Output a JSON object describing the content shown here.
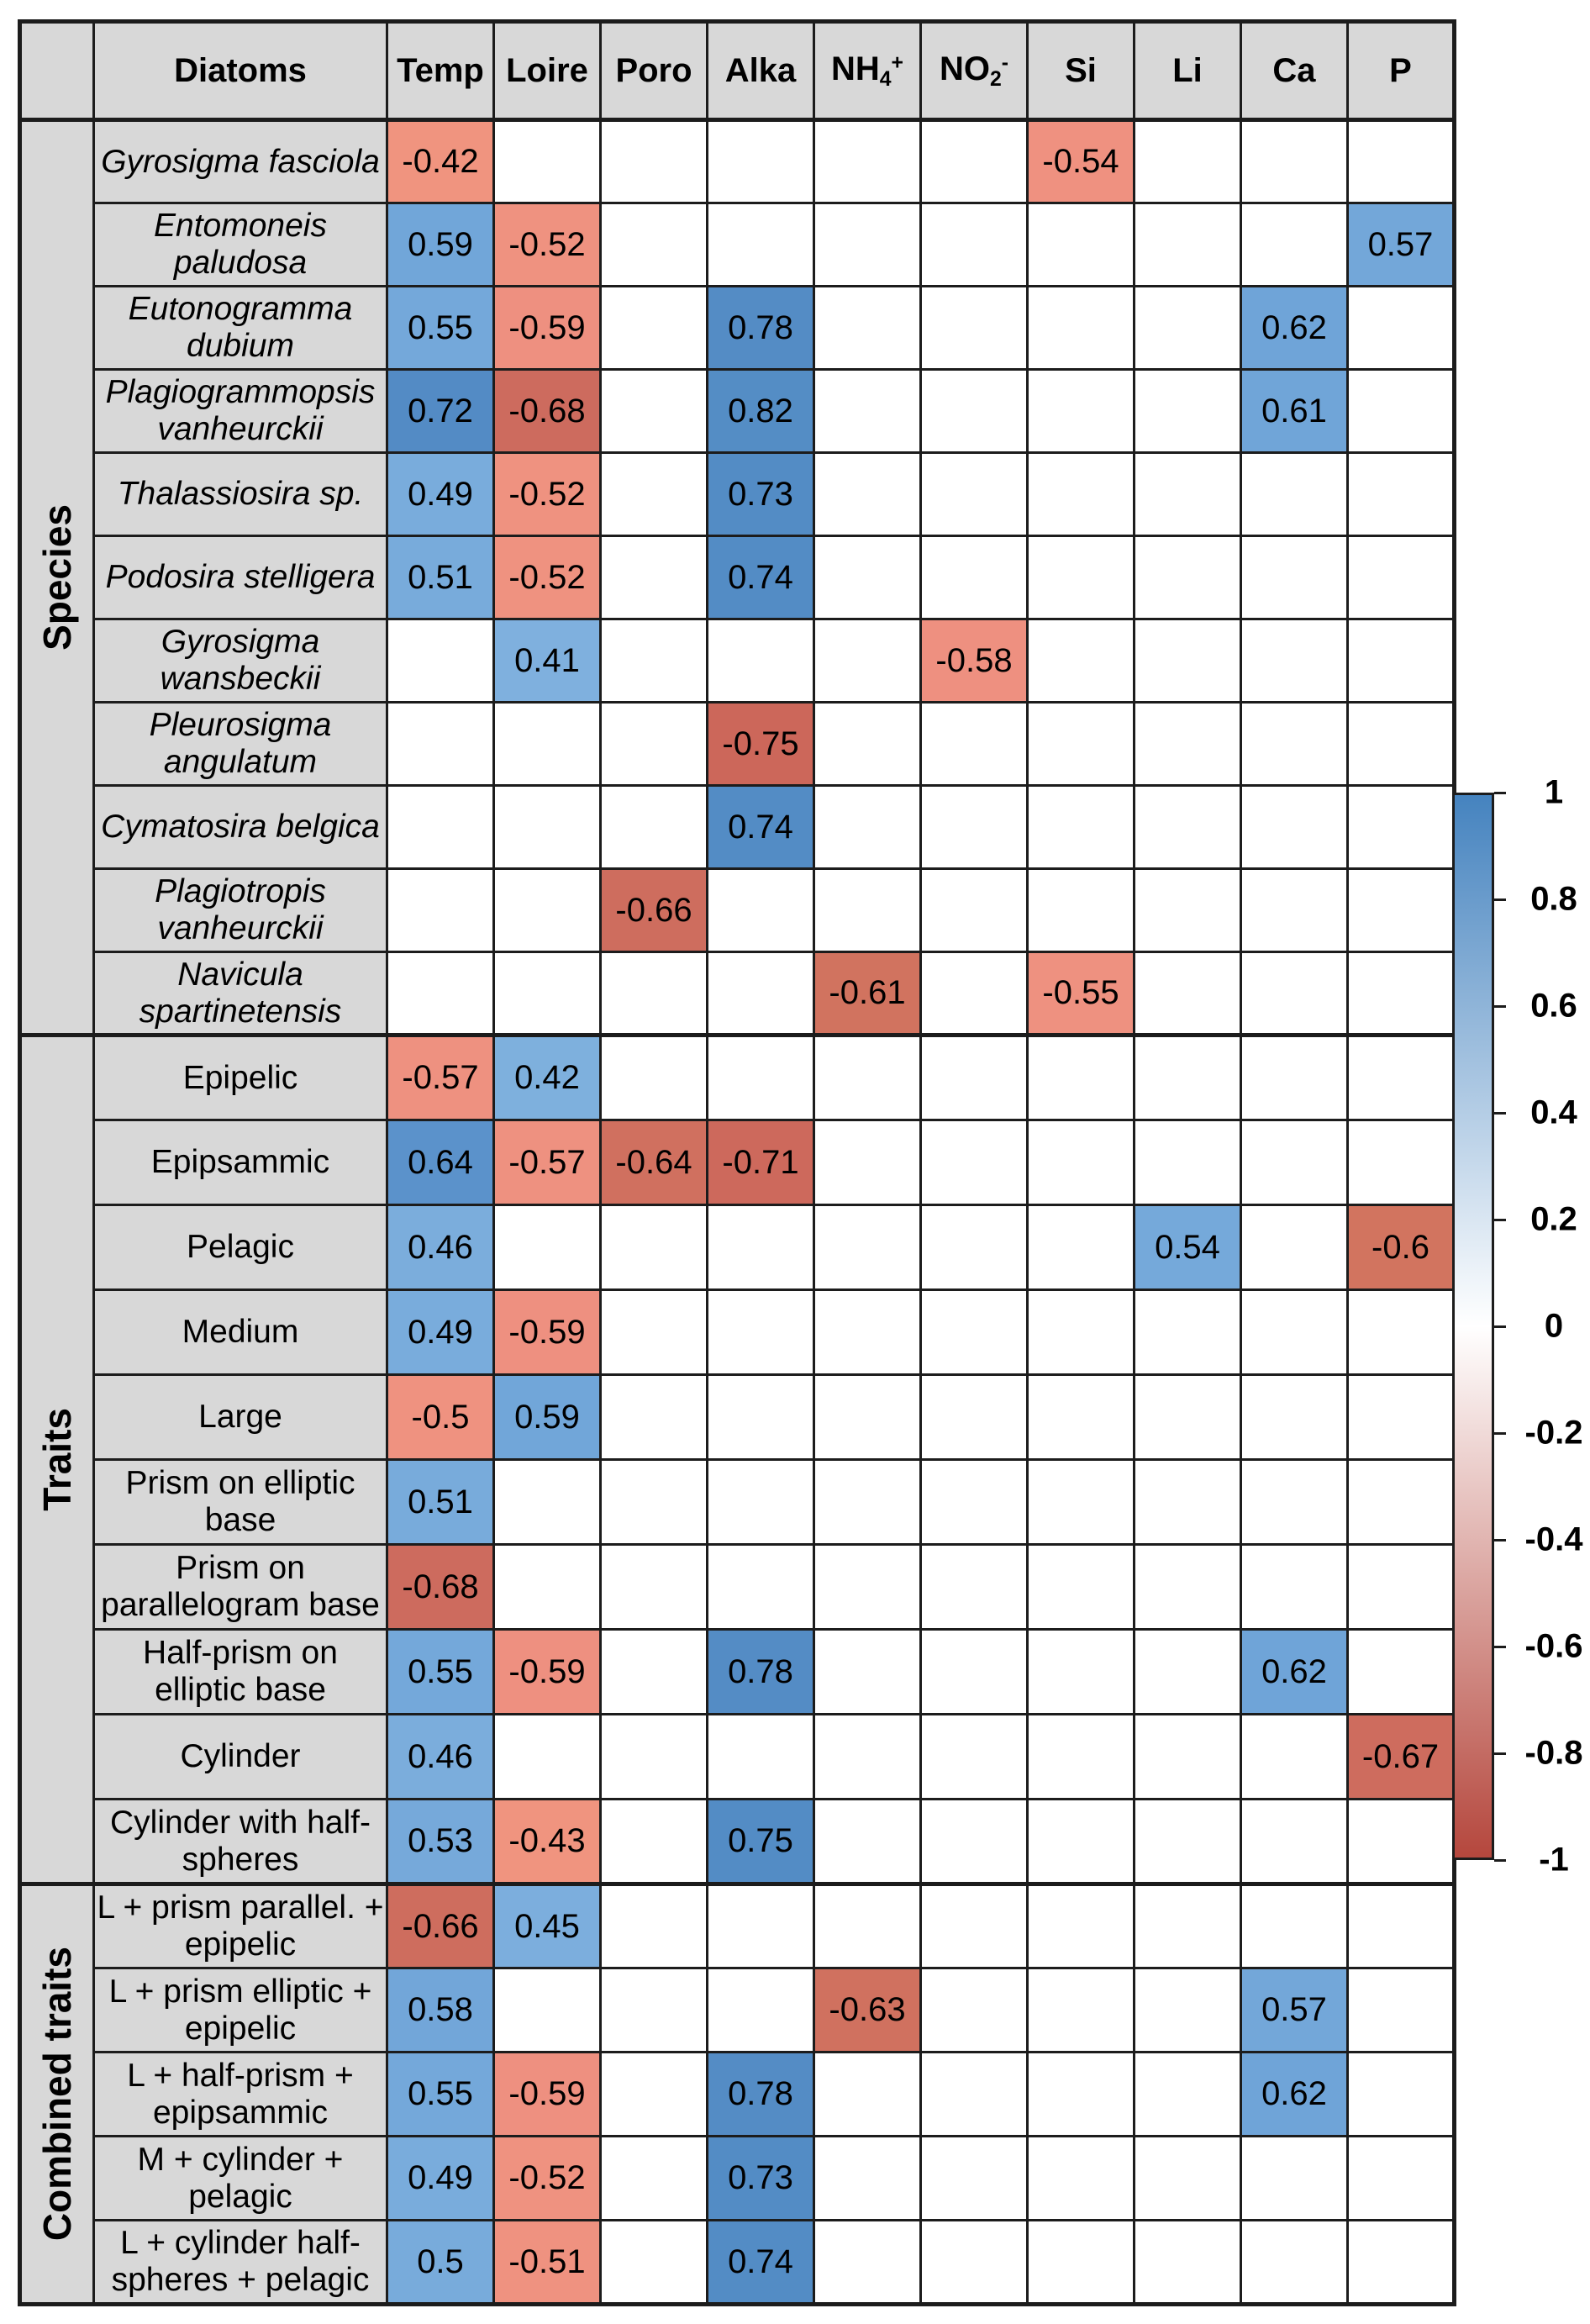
{
  "chart_data": {
    "type": "heatmap",
    "diatoms_header": "Diatoms",
    "columns": [
      {
        "id": "temp",
        "label": "Temp"
      },
      {
        "id": "loire",
        "label": "Loire"
      },
      {
        "id": "poro",
        "label": "Poro"
      },
      {
        "id": "alka",
        "label": "Alka"
      },
      {
        "id": "nh4",
        "label": "NH4+",
        "segs": [
          {
            "t": "NH"
          },
          {
            "t": "4",
            "sub": true
          },
          {
            "t": "+",
            "sup": true
          }
        ]
      },
      {
        "id": "no2",
        "label": "NO2-",
        "segs": [
          {
            "t": "NO"
          },
          {
            "t": "2",
            "sub": true
          },
          {
            "t": "-",
            "sup": true
          }
        ]
      },
      {
        "id": "si",
        "label": "Si"
      },
      {
        "id": "li",
        "label": "Li"
      },
      {
        "id": "ca",
        "label": "Ca"
      },
      {
        "id": "p",
        "label": "P"
      }
    ],
    "value_range": [
      -1,
      1
    ],
    "sections": [
      {
        "label": "Species",
        "rows": [
          {
            "label": "Gyrosigma fasciola",
            "italic": true,
            "values": [
              -0.42,
              null,
              null,
              null,
              null,
              null,
              -0.54,
              null,
              null,
              null
            ]
          },
          {
            "label": "Entomoneis paludosa",
            "italic": true,
            "values": [
              0.59,
              -0.52,
              null,
              null,
              null,
              null,
              null,
              null,
              null,
              0.57
            ]
          },
          {
            "label": "Eutonogramma dubium",
            "italic": true,
            "values": [
              0.55,
              -0.59,
              null,
              0.78,
              null,
              null,
              null,
              null,
              0.62,
              null
            ]
          },
          {
            "label": "Plagiogrammopsis vanheurckii",
            "italic": true,
            "values": [
              0.72,
              -0.68,
              null,
              0.82,
              null,
              null,
              null,
              null,
              0.61,
              null
            ]
          },
          {
            "label": "Thalassiosira sp.",
            "italic": true,
            "values": [
              0.49,
              -0.52,
              null,
              0.73,
              null,
              null,
              null,
              null,
              null,
              null
            ]
          },
          {
            "label": "Podosira stelligera",
            "italic": true,
            "values": [
              0.51,
              -0.52,
              null,
              0.74,
              null,
              null,
              null,
              null,
              null,
              null
            ]
          },
          {
            "label": "Gyrosigma wansbeckii",
            "italic": true,
            "values": [
              null,
              0.41,
              null,
              null,
              null,
              -0.58,
              null,
              null,
              null,
              null
            ]
          },
          {
            "label": "Pleurosigma angulatum",
            "italic": true,
            "values": [
              null,
              null,
              null,
              -0.75,
              null,
              null,
              null,
              null,
              null,
              null
            ]
          },
          {
            "label": "Cymatosira belgica",
            "italic": true,
            "values": [
              null,
              null,
              null,
              0.74,
              null,
              null,
              null,
              null,
              null,
              null
            ]
          },
          {
            "label": "Plagiotropis vanheurckii",
            "italic": true,
            "values": [
              null,
              null,
              -0.66,
              null,
              null,
              null,
              null,
              null,
              null,
              null
            ]
          },
          {
            "label": "Navicula spartinetensis",
            "italic": true,
            "values": [
              null,
              null,
              null,
              null,
              -0.61,
              null,
              -0.55,
              null,
              null,
              null
            ]
          }
        ]
      },
      {
        "label": "Traits",
        "rows": [
          {
            "label": "Epipelic",
            "italic": false,
            "values": [
              -0.57,
              0.42,
              null,
              null,
              null,
              null,
              null,
              null,
              null,
              null
            ]
          },
          {
            "label": "Epipsammic",
            "italic": false,
            "values": [
              0.64,
              -0.57,
              -0.64,
              -0.71,
              null,
              null,
              null,
              null,
              null,
              null
            ]
          },
          {
            "label": "Pelagic",
            "italic": false,
            "values": [
              0.46,
              null,
              null,
              null,
              null,
              null,
              null,
              0.54,
              null,
              -0.6
            ]
          },
          {
            "label": "Medium",
            "italic": false,
            "values": [
              0.49,
              -0.59,
              null,
              null,
              null,
              null,
              null,
              null,
              null,
              null
            ]
          },
          {
            "label": "Large",
            "italic": false,
            "values": [
              -0.5,
              0.59,
              null,
              null,
              null,
              null,
              null,
              null,
              null,
              null
            ]
          },
          {
            "label": "Prism on elliptic base",
            "italic": false,
            "values": [
              0.51,
              null,
              null,
              null,
              null,
              null,
              null,
              null,
              null,
              null
            ]
          },
          {
            "label": "Prism on parallelogram base",
            "italic": false,
            "values": [
              -0.68,
              null,
              null,
              null,
              null,
              null,
              null,
              null,
              null,
              null
            ]
          },
          {
            "label": "Half-prism on elliptic base",
            "italic": false,
            "values": [
              0.55,
              -0.59,
              null,
              0.78,
              null,
              null,
              null,
              null,
              0.62,
              null
            ]
          },
          {
            "label": "Cylinder",
            "italic": false,
            "values": [
              0.46,
              null,
              null,
              null,
              null,
              null,
              null,
              null,
              null,
              -0.67
            ]
          },
          {
            "label": "Cylinder with half-spheres",
            "italic": false,
            "values": [
              0.53,
              -0.43,
              null,
              0.75,
              null,
              null,
              null,
              null,
              null,
              null
            ]
          }
        ]
      },
      {
        "label": "Combined traits",
        "rows": [
          {
            "label": "L + prism parallel. + epipelic",
            "italic": false,
            "values": [
              -0.66,
              0.45,
              null,
              null,
              null,
              null,
              null,
              null,
              null,
              null
            ]
          },
          {
            "label": "L + prism elliptic + epipelic",
            "italic": false,
            "values": [
              0.58,
              null,
              null,
              null,
              -0.63,
              null,
              null,
              null,
              0.57,
              null
            ]
          },
          {
            "label": "L + half-prism + epipsammic",
            "italic": false,
            "values": [
              0.55,
              -0.59,
              null,
              0.78,
              null,
              null,
              null,
              null,
              0.62,
              null
            ]
          },
          {
            "label": "M + cylinder + pelagic",
            "italic": false,
            "values": [
              0.49,
              -0.52,
              null,
              0.73,
              null,
              null,
              null,
              null,
              null,
              null
            ]
          },
          {
            "label": "L + cylinder half-spheres + pelagic",
            "italic": false,
            "values": [
              0.5,
              -0.51,
              null,
              0.74,
              null,
              null,
              null,
              null,
              null,
              null
            ]
          }
        ]
      }
    ],
    "colorbar": {
      "tick_labels": [
        "1",
        "0.8",
        "0.6",
        "0.4",
        "0.2",
        "0",
        "-0.2",
        "-0.4",
        "-0.6",
        "-0.8",
        "-1"
      ],
      "top_value": 1,
      "bottom_value": -1
    }
  },
  "colors": {
    "page_bg": "#ffffff",
    "header_bg": "#d8d8d8",
    "grid": "#1c1c1c",
    "cell_empty": "#ffffff",
    "colorbar_top": "#4583bf",
    "colorbar_mid": "#ffffff",
    "colorbar_bottom": "#b5473d",
    "positive_anchors": [
      [
        0,
        "#ffffff"
      ],
      [
        0.4,
        "#80b1de"
      ],
      [
        0.62,
        "#6fa4d8"
      ],
      [
        0.64,
        "#5b92cb"
      ],
      [
        0.7,
        "#538bc5"
      ],
      [
        0.82,
        "#548dc5"
      ],
      [
        1.0,
        "#4583bf"
      ]
    ],
    "negative_anchors": [
      [
        0,
        "#ffffff"
      ],
      [
        0.4,
        "#f0957f"
      ],
      [
        0.59,
        "#ee9080"
      ],
      [
        0.6,
        "#d2745f"
      ],
      [
        0.68,
        "#cd6b5e"
      ],
      [
        0.75,
        "#cc675a"
      ],
      [
        1.0,
        "#b5473d"
      ]
    ]
  }
}
